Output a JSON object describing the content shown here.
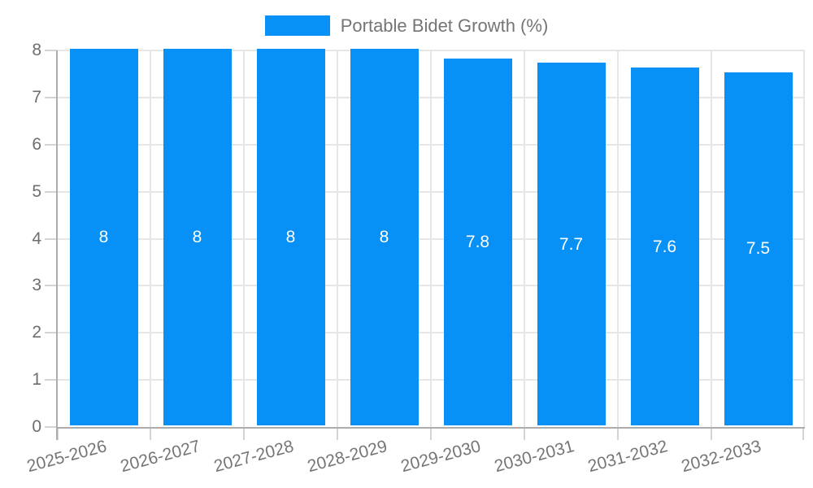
{
  "chart_data": {
    "type": "bar",
    "title": "Portable Bidet Growth (%)",
    "categories": [
      "2025-2026",
      "2026-2027",
      "2027-2028",
      "2028-2029",
      "2029-2030",
      "2030-2031",
      "2031-2032",
      "2032-2033"
    ],
    "values": [
      8,
      8,
      8,
      8,
      7.8,
      7.7,
      7.6,
      7.5
    ],
    "bar_value_labels": [
      "8",
      "8",
      "8",
      "8",
      "7.8",
      "7.7",
      "7.6",
      "7.5"
    ],
    "xlabel": "",
    "ylabel": "",
    "ylim": [
      0,
      8
    ],
    "y_ticks": [
      0,
      1,
      2,
      3,
      4,
      5,
      6,
      7,
      8
    ],
    "grid": true,
    "legend_position": "top-center",
    "colors": {
      "bar": "#0790f5",
      "grid_line": "#e6e6e6",
      "axis_line": "#adadad",
      "tick_mark": "#d4d4d4",
      "value_label_text": "#ffffff",
      "axis_number_text": "#6e6e6e",
      "category_text": "#757575",
      "legend_text": "#757575",
      "background": "#ffffff"
    }
  }
}
